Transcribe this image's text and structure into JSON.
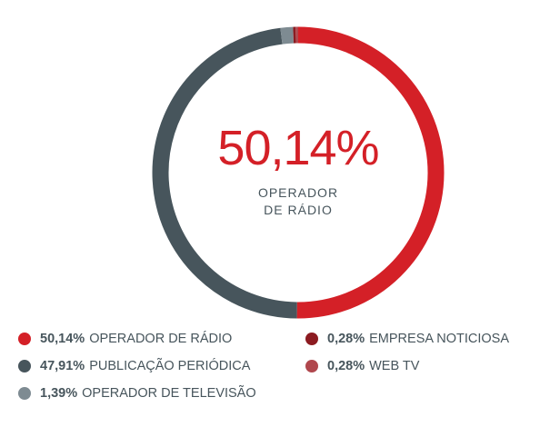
{
  "chart_data": {
    "type": "donut",
    "categories": [
      "OPERADOR DE RÁDIO",
      "PUBLICAÇÃO PERIÓDICA",
      "OPERADOR DE TELEVISÃO",
      "EMPRESA NOTICIOSA",
      "WEB TV"
    ],
    "values": [
      50.14,
      47.91,
      1.39,
      0.28,
      0.28
    ],
    "value_labels": [
      "50,14%",
      "47,91%",
      "1,39%",
      "0,28%",
      "0,28%"
    ],
    "colors": [
      "#d42027",
      "#47555c",
      "#7e8b92",
      "#8c1b21",
      "#b0474d"
    ]
  }
}
